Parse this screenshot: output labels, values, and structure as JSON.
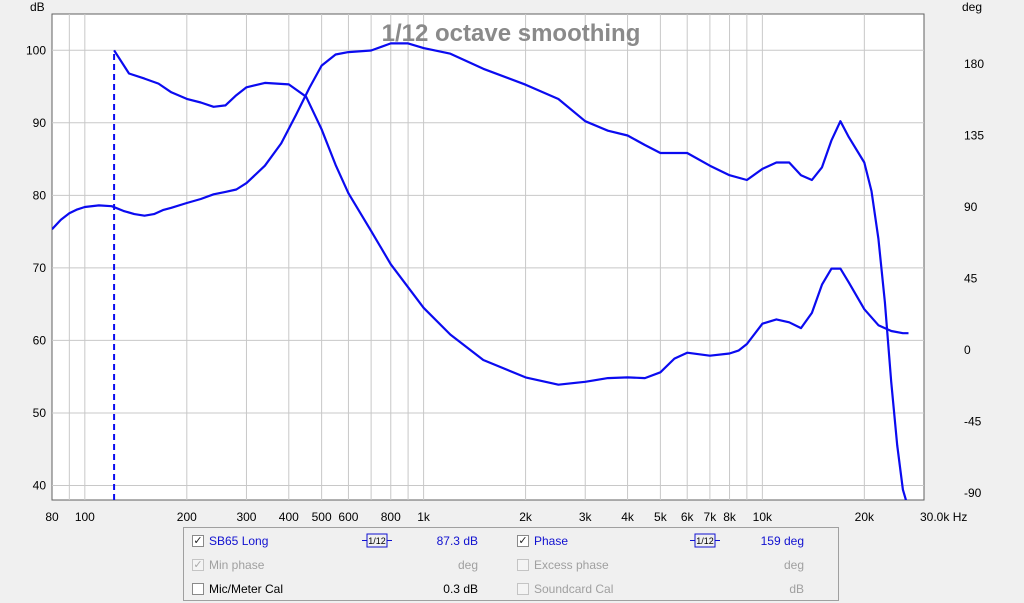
{
  "chart_data": {
    "type": "line",
    "title": "1/12 octave smoothing",
    "y_left_unit": "dB",
    "y_right_unit": "deg",
    "x_unit": "Hz",
    "xlim": [
      80,
      30000
    ],
    "ylim_left": [
      38,
      105
    ],
    "ylim_right": [
      -94.5,
      211.5
    ],
    "x_scale": "log",
    "grid": true,
    "x_tick_labels": [
      {
        "v": 80,
        "t": "80"
      },
      {
        "v": 100,
        "t": "100"
      },
      {
        "v": 200,
        "t": "200"
      },
      {
        "v": 300,
        "t": "300"
      },
      {
        "v": 400,
        "t": "400"
      },
      {
        "v": 500,
        "t": "500"
      },
      {
        "v": 600,
        "t": "600"
      },
      {
        "v": 800,
        "t": "800"
      },
      {
        "v": 1000,
        "t": "1k"
      },
      {
        "v": 2000,
        "t": "2k"
      },
      {
        "v": 3000,
        "t": "3k"
      },
      {
        "v": 4000,
        "t": "4k"
      },
      {
        "v": 5000,
        "t": "5k"
      },
      {
        "v": 6000,
        "t": "6k"
      },
      {
        "v": 7000,
        "t": "7k"
      },
      {
        "v": 8000,
        "t": "8k"
      },
      {
        "v": 10000,
        "t": "10k"
      },
      {
        "v": 20000,
        "t": "20k"
      },
      {
        "v": 30000,
        "t": "30.0k Hz"
      }
    ],
    "y_left_ticks": [
      40,
      50,
      60,
      70,
      80,
      90,
      100
    ],
    "y_right_ticks": [
      -90,
      -45,
      0,
      45,
      90,
      135,
      180
    ],
    "series": [
      {
        "name": "SB65 Long",
        "color": "#0b0bf0",
        "axis": "left",
        "dashed_start": {
          "x": 122,
          "y_from": 38,
          "y_to": 100
        },
        "x": [
          122,
          135,
          150,
          165,
          180,
          200,
          220,
          240,
          260,
          280,
          300,
          340,
          400,
          450,
          500,
          550,
          600,
          700,
          800,
          1000,
          1200,
          1500,
          2000,
          2500,
          3000,
          3500,
          4000,
          4500,
          5000,
          5500,
          6000,
          7000,
          8000,
          8500,
          9000,
          10000,
          11000,
          12000,
          13000,
          14000,
          15000,
          16000,
          17000,
          18000,
          20000,
          22000,
          24000,
          26000,
          27000
        ],
        "values": [
          100,
          96.8,
          96.1,
          95.4,
          94.2,
          93.3,
          92.8,
          92.2,
          92.4,
          93.8,
          94.9,
          95.5,
          95.3,
          93.6,
          89.1,
          84.2,
          80.3,
          75.1,
          70.5,
          64.5,
          60.8,
          57.3,
          54.9,
          53.9,
          54.3,
          54.8,
          54.9,
          54.8,
          55.6,
          57.5,
          58.3,
          57.9,
          58.2,
          58.6,
          59.5,
          62.3,
          62.9,
          62.5,
          61.7,
          63.8,
          67.7,
          69.9,
          69.9,
          68.0,
          64.3,
          62.1,
          61.3,
          61.0,
          61.0
        ]
      },
      {
        "name": "Phase",
        "color": "#0b0bf0",
        "axis": "right",
        "x": [
          80,
          85,
          90,
          95,
          100,
          110,
          120,
          130,
          140,
          150,
          160,
          170,
          180,
          200,
          220,
          240,
          260,
          280,
          300,
          340,
          380,
          420,
          460,
          500,
          550,
          600,
          700,
          800,
          900,
          1000,
          1200,
          1500,
          2000,
          2500,
          3000,
          3500,
          4000,
          4500,
          5000,
          5500,
          6000,
          7000,
          8000,
          9000,
          10000,
          11000,
          12000,
          13000,
          14000,
          15000,
          16000,
          17000,
          18000,
          20000,
          21000,
          22000,
          23000,
          24000,
          25000,
          26000,
          27000
        ],
        "values": [
          76,
          82,
          86,
          88.5,
          90,
          91,
          90.5,
          87.5,
          85.5,
          84.5,
          85.5,
          88,
          89.5,
          92.5,
          95,
          98,
          99.5,
          101,
          105,
          116,
          130,
          148,
          165,
          179,
          186,
          187.5,
          188.5,
          193,
          193,
          190,
          186.5,
          177,
          167,
          158,
          144,
          138,
          135,
          129,
          124,
          124,
          124,
          116,
          110,
          107,
          114,
          118,
          118,
          110,
          107,
          115,
          132,
          144,
          134,
          118,
          100,
          70,
          30,
          -20,
          -60,
          -88,
          -100
        ]
      }
    ]
  },
  "header": {
    "y_left_unit": "dB",
    "y_right_unit": "deg"
  },
  "legend": {
    "rows": [
      {
        "left": {
          "label": "SB65 Long",
          "checked": true,
          "enabled": true,
          "smoothing": "1/12",
          "value": "87.3 dB"
        },
        "right": {
          "label": "Phase",
          "checked": true,
          "enabled": true,
          "smoothing": "1/12",
          "value": "159 deg"
        }
      },
      {
        "left": {
          "label": "Min phase",
          "checked": true,
          "enabled": false,
          "value": "deg"
        },
        "right": {
          "label": "Excess phase",
          "checked": false,
          "enabled": false,
          "value": "deg"
        }
      },
      {
        "left": {
          "label": "Mic/Meter Cal",
          "checked": false,
          "enabled": true,
          "value": "0.3 dB"
        },
        "right": {
          "label": "Soundcard Cal",
          "checked": false,
          "enabled": false,
          "value": "dB"
        }
      }
    ],
    "check_mark": "✓",
    "icon": "octave-smoothing-icon"
  }
}
